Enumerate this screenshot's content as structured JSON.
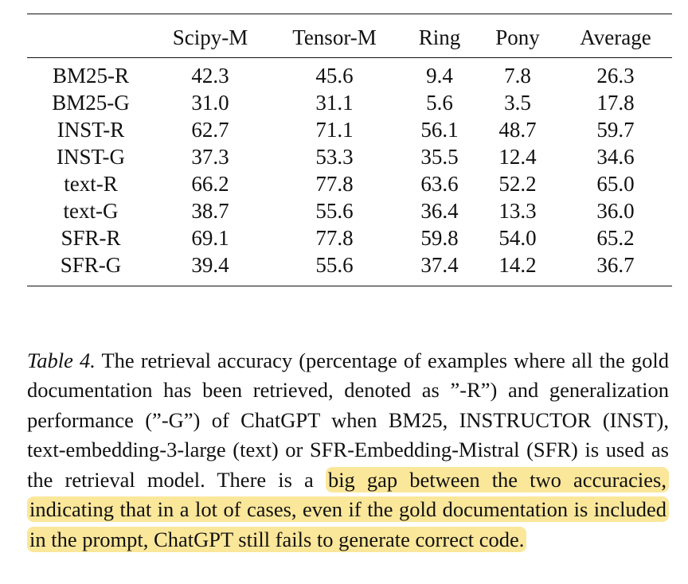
{
  "table": {
    "columns": [
      "",
      "Scipy-M",
      "Tensor-M",
      "Ring",
      "Pony",
      "Average"
    ],
    "rows": [
      [
        "BM25-R",
        "42.3",
        "45.6",
        "9.4",
        "7.8",
        "26.3"
      ],
      [
        "BM25-G",
        "31.0",
        "31.1",
        "5.6",
        "3.5",
        "17.8"
      ],
      [
        "INST-R",
        "62.7",
        "71.1",
        "56.1",
        "48.7",
        "59.7"
      ],
      [
        "INST-G",
        "37.3",
        "53.3",
        "35.5",
        "12.4",
        "34.6"
      ],
      [
        "text-R",
        "66.2",
        "77.8",
        "63.6",
        "52.2",
        "65.0"
      ],
      [
        "text-G",
        "38.7",
        "55.6",
        "36.4",
        "13.3",
        "36.0"
      ],
      [
        "SFR-R",
        "69.1",
        "77.8",
        "59.8",
        "54.0",
        "65.2"
      ],
      [
        "SFR-G",
        "39.4",
        "55.6",
        "37.4",
        "14.2",
        "36.7"
      ]
    ]
  },
  "caption": {
    "label": "Table 4.",
    "text_before": " The retrieval accuracy (percentage of examples where all the gold documentation has been retrieved, denoted as ”-R”) and generalization performance (”-G”) of ChatGPT when BM25, INSTRUCTOR (INST), text-embedding-3-large (text) or SFR-Embedding-Mistral (SFR) is used as the retrieval model. There is a ",
    "highlighted": "big gap between the two accuracies, indicating that in a lot of cases, even if the gold documentation is included in the prompt, ChatGPT still fails to generate correct code.",
    "highlight_color": "#fbe79a"
  }
}
